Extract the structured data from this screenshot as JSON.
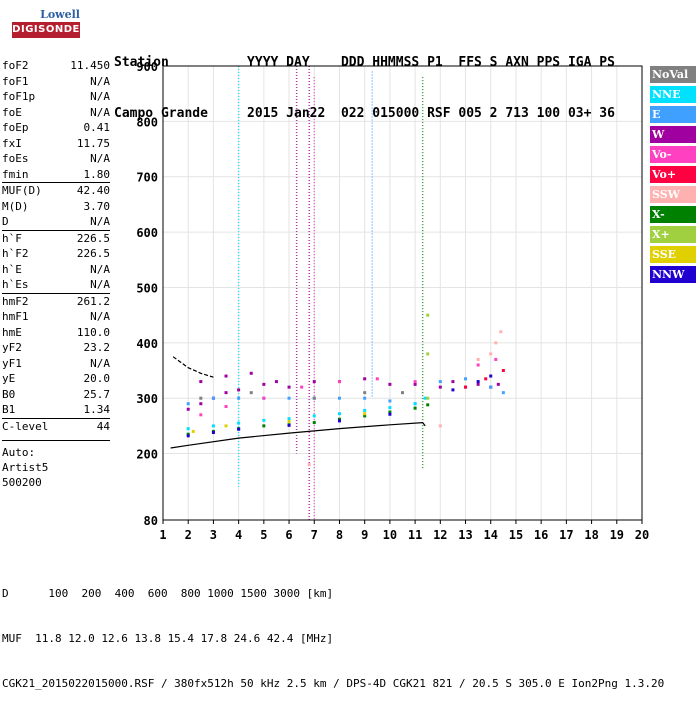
{
  "logo": {
    "lowell": "Lowell",
    "digisonde": "DIGISONDE"
  },
  "header": {
    "line1": "Station          YYYY DAY    DDD HHMMSS P1  FFS S AXN PPS IGA PS",
    "line2": "Campo Grande     2015 Jan22  022 015000 RSF 005 2 713 100 03+ 36"
  },
  "params": [
    {
      "label": "foF2",
      "value": "11.450"
    },
    {
      "label": "foF1",
      "value": "N/A"
    },
    {
      "label": "foF1p",
      "value": "N/A"
    },
    {
      "label": "foE",
      "value": "N/A"
    },
    {
      "label": "foEp",
      "value": "0.41"
    },
    {
      "label": "fxI",
      "value": "11.75"
    },
    {
      "label": "foEs",
      "value": "N/A"
    },
    {
      "label": "fmin",
      "value": "1.80"
    },
    {
      "label": "MUF(D)",
      "value": "42.40",
      "sep": true
    },
    {
      "label": "M(D)",
      "value": "3.70"
    },
    {
      "label": "D",
      "value": "N/A"
    },
    {
      "label": "h`F",
      "value": "226.5",
      "sep": true
    },
    {
      "label": "h`F2",
      "value": "226.5"
    },
    {
      "label": "h`E",
      "value": "N/A"
    },
    {
      "label": "h`Es",
      "value": "N/A"
    },
    {
      "label": "hmF2",
      "value": "261.2",
      "sep": true
    },
    {
      "label": "hmF1",
      "value": "N/A"
    },
    {
      "label": "hmE",
      "value": "110.0"
    },
    {
      "label": "yF2",
      "value": "23.2"
    },
    {
      "label": "yF1",
      "value": "N/A"
    },
    {
      "label": "yE",
      "value": "20.0"
    },
    {
      "label": "B0",
      "value": "25.7"
    },
    {
      "label": "B1",
      "value": "1.34"
    },
    {
      "label": "C-level",
      "value": "44",
      "sep": true
    }
  ],
  "autoscaling": {
    "auto": "Auto:",
    "artist": "Artist5",
    "version": "500200"
  },
  "bottom": {
    "dist_line": "D      100  200  400  600  800 1000 1500 3000 [km]",
    "muf_line": "MUF  11.8 12.0 12.6 13.8 15.4 17.8 24.6 42.4 [MHz]",
    "file_line": "CGK21_2015022015000.RSF / 380fx512h 50 kHz 2.5 km / DPS-4D CGK21 821 / 20.5 S 305.0 E Ion2Png 1.3.20"
  },
  "legend": [
    {
      "label": "NoVal",
      "color": "#808080"
    },
    {
      "label": "NNE",
      "color": "#00e0ff"
    },
    {
      "label": "E",
      "color": "#40a0ff"
    },
    {
      "label": "W",
      "color": "#a000a0"
    },
    {
      "label": "Vo-",
      "color": "#ff40c0"
    },
    {
      "label": "Vo+",
      "color": "#ff0040"
    },
    {
      "label": "SSW",
      "color": "#ffb0b0"
    },
    {
      "label": "X-",
      "color": "#008000"
    },
    {
      "label": "X+",
      "color": "#a0d040"
    },
    {
      "label": "SSE",
      "color": "#e0d000"
    },
    {
      "label": "NNW",
      "color": "#2000d0"
    }
  ],
  "chart_data": {
    "type": "scatter",
    "title": "",
    "xlabel": "",
    "ylabel": "",
    "xlim": [
      1,
      20
    ],
    "ylim": [
      80,
      900
    ],
    "x_ticks": [
      "1",
      "2",
      "3",
      "4",
      "5",
      "6",
      "7",
      "8",
      "9",
      "10",
      "11",
      "12",
      "13",
      "14",
      "15",
      "16",
      "17",
      "18",
      "19",
      "20"
    ],
    "y_ticks": [
      "80",
      "200",
      "300",
      "400",
      "500",
      "600",
      "700",
      "800",
      "900"
    ],
    "grid": true,
    "legend_position": "right",
    "series": [
      {
        "name": "W",
        "color": "#a000a0",
        "points": [
          [
            2.0,
            280
          ],
          [
            2.5,
            290
          ],
          [
            3.0,
            300
          ],
          [
            3.5,
            310
          ],
          [
            4.0,
            315
          ],
          [
            5.0,
            325
          ],
          [
            6.0,
            320
          ],
          [
            7.0,
            330
          ],
          [
            8.0,
            330
          ],
          [
            9.0,
            335
          ],
          [
            10.0,
            325
          ],
          [
            11.0,
            325
          ],
          [
            12.0,
            320
          ],
          [
            12.5,
            330
          ],
          [
            13.0,
            320
          ],
          [
            13.5,
            325
          ],
          [
            14.0,
            320
          ],
          [
            14.3,
            325
          ],
          [
            2.5,
            330
          ],
          [
            3.5,
            340
          ],
          [
            4.5,
            345
          ],
          [
            5.5,
            330
          ]
        ]
      },
      {
        "name": "E",
        "color": "#40a0ff",
        "points": [
          [
            2.0,
            290
          ],
          [
            3.0,
            300
          ],
          [
            4.0,
            300
          ],
          [
            5.0,
            300
          ],
          [
            6.0,
            300
          ],
          [
            7.0,
            300
          ],
          [
            8.0,
            300
          ],
          [
            9.0,
            300
          ],
          [
            10.0,
            295
          ],
          [
            11.0,
            290
          ],
          [
            12.0,
            330
          ],
          [
            13.0,
            335
          ],
          [
            14.0,
            320
          ],
          [
            14.5,
            310
          ]
        ]
      },
      {
        "name": "X-",
        "color": "#008000",
        "points": [
          [
            2.0,
            235
          ],
          [
            3.0,
            240
          ],
          [
            4.0,
            245
          ],
          [
            5.0,
            250
          ],
          [
            6.0,
            252
          ],
          [
            7.0,
            256
          ],
          [
            8.0,
            262
          ],
          [
            9.0,
            268
          ],
          [
            10.0,
            275
          ],
          [
            11.0,
            282
          ],
          [
            11.5,
            288
          ]
        ]
      },
      {
        "name": "NNE",
        "color": "#00e0ff",
        "points": [
          [
            2.0,
            245
          ],
          [
            3.0,
            250
          ],
          [
            4.0,
            255
          ],
          [
            5.0,
            260
          ],
          [
            6.0,
            263
          ],
          [
            7.0,
            268
          ],
          [
            8.0,
            272
          ],
          [
            9.0,
            278
          ],
          [
            10.0,
            283
          ],
          [
            11.0,
            290
          ],
          [
            11.4,
            300
          ]
        ]
      },
      {
        "name": "Vo-",
        "color": "#ff40c0",
        "points": [
          [
            2.5,
            270
          ],
          [
            3.5,
            285
          ],
          [
            5.0,
            300
          ],
          [
            6.5,
            320
          ],
          [
            8.0,
            330
          ],
          [
            9.5,
            335
          ],
          [
            11.0,
            330
          ],
          [
            13.5,
            360
          ],
          [
            14.2,
            370
          ]
        ]
      },
      {
        "name": "NNW",
        "color": "#2000d0",
        "points": [
          [
            2.0,
            232
          ],
          [
            3.0,
            238
          ],
          [
            4.0,
            244
          ],
          [
            6.0,
            251
          ],
          [
            8.0,
            259
          ],
          [
            10.0,
            271
          ],
          [
            12.5,
            315
          ],
          [
            13.5,
            330
          ],
          [
            14.0,
            340
          ]
        ]
      },
      {
        "name": "SSW",
        "color": "#ffb0b0",
        "points": [
          [
            13.5,
            370
          ],
          [
            14.0,
            380
          ],
          [
            14.2,
            400
          ],
          [
            14.4,
            420
          ],
          [
            12.0,
            250
          ],
          [
            6.8,
            180
          ]
        ]
      },
      {
        "name": "X+",
        "color": "#a0d040",
        "points": [
          [
            11.5,
            300
          ],
          [
            11.5,
            380
          ],
          [
            11.5,
            450
          ]
        ]
      },
      {
        "name": "SSE",
        "color": "#e0d000",
        "points": [
          [
            2.2,
            240
          ],
          [
            3.5,
            250
          ],
          [
            6.0,
            258
          ],
          [
            9.0,
            272
          ]
        ]
      },
      {
        "name": "NoVal",
        "color": "#808080",
        "points": [
          [
            2.5,
            300
          ],
          [
            4.5,
            310
          ],
          [
            7.0,
            300
          ],
          [
            9.0,
            310
          ],
          [
            10.5,
            310
          ]
        ]
      },
      {
        "name": "Vo+",
        "color": "#ff0040",
        "points": [
          [
            13.0,
            320
          ],
          [
            13.8,
            335
          ],
          [
            14.5,
            350
          ]
        ]
      }
    ],
    "vertical_streaks": [
      {
        "x": 4.0,
        "y_range": [
          140,
          900
        ],
        "color": "#00e0ff"
      },
      {
        "x": 6.3,
        "y_range": [
          200,
          900
        ],
        "color": "#a000a0"
      },
      {
        "x": 6.8,
        "y_range": [
          80,
          900
        ],
        "color": "#a000a0"
      },
      {
        "x": 7.0,
        "y_range": [
          80,
          880
        ],
        "color": "#ff40c0"
      },
      {
        "x": 9.3,
        "y_range": [
          300,
          890
        ],
        "color": "#40a0ff"
      },
      {
        "x": 11.3,
        "y_range": [
          170,
          880
        ],
        "color": "#008000"
      }
    ],
    "curves": [
      {
        "name": "profile",
        "color": "#000000",
        "points": [
          [
            1.3,
            210
          ],
          [
            2.0,
            215
          ],
          [
            4.0,
            228
          ],
          [
            6.0,
            237
          ],
          [
            8.0,
            245
          ],
          [
            10.0,
            252
          ],
          [
            11.3,
            256
          ],
          [
            11.4,
            250
          ]
        ]
      },
      {
        "name": "upper",
        "color": "#000000",
        "points": [
          [
            1.4,
            375
          ],
          [
            2.0,
            355
          ],
          [
            2.5,
            345
          ],
          [
            3.0,
            338
          ]
        ]
      }
    ]
  }
}
